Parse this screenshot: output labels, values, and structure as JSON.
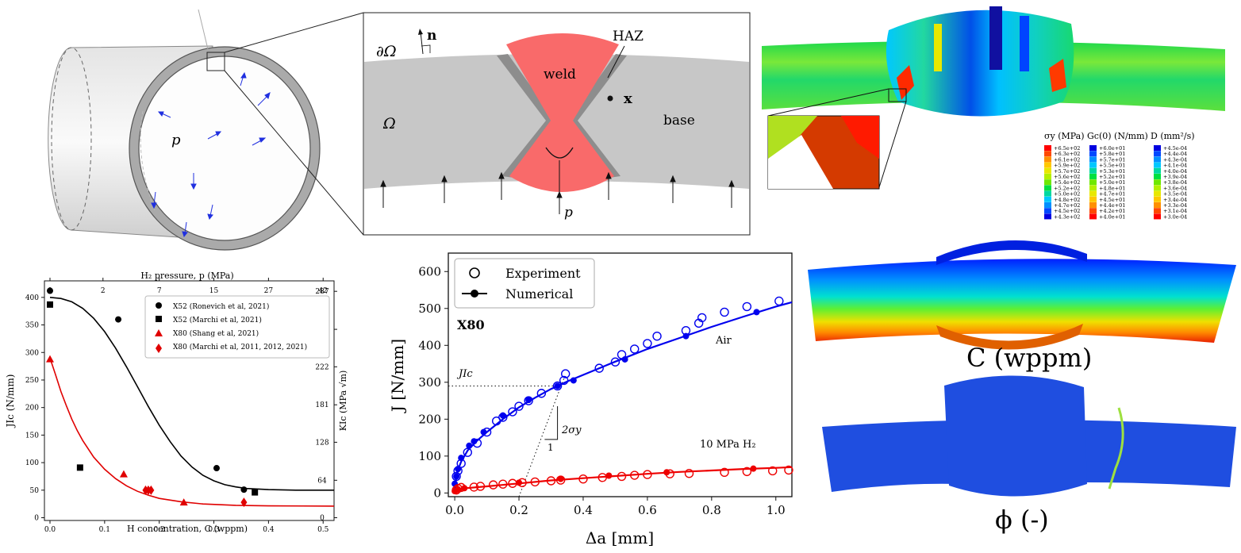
{
  "pipe": {
    "pressure_symbol": "p"
  },
  "weld_schematic": {
    "boundary": "∂Ω",
    "normal": "n",
    "domain": "Ω",
    "weld": "weld",
    "haz": "HAZ",
    "point": "x",
    "base": "base",
    "pressure": "p"
  },
  "fe_map": {
    "legends": [
      {
        "title": "σy (MPa)",
        "values": [
          "+6.5e+02",
          "+6.3e+02",
          "+6.1e+02",
          "+5.9e+02",
          "+5.7e+02",
          "+5.6e+02",
          "+5.4e+02",
          "+5.2e+02",
          "+5.0e+02",
          "+4.8e+02",
          "+4.7e+02",
          "+4.5e+02",
          "+4.3e+02"
        ],
        "colors": [
          "#ff0000",
          "#ff4800",
          "#ff9000",
          "#ffc800",
          "#e8e800",
          "#b4f000",
          "#6ee800",
          "#00e040",
          "#00d8a0",
          "#00c8ff",
          "#0090ff",
          "#0048ff",
          "#0000e0"
        ]
      },
      {
        "title": "Gc(0) (N/mm)",
        "values": [
          "+6.0e+01",
          "+5.8e+01",
          "+5.7e+01",
          "+5.5e+01",
          "+5.3e+01",
          "+5.2e+01",
          "+5.0e+01",
          "+4.8e+01",
          "+4.7e+01",
          "+4.5e+01",
          "+4.4e+01",
          "+4.2e+01",
          "+4.0e+01"
        ],
        "colors": [
          "#0000e0",
          "#0048ff",
          "#0090ff",
          "#00c8ff",
          "#00d8a0",
          "#00e040",
          "#6ee800",
          "#b4f000",
          "#e8e800",
          "#ffc800",
          "#ff9000",
          "#ff4800",
          "#ff0000"
        ]
      },
      {
        "title": "D (mm²/s)",
        "values": [
          "+4.5e-04",
          "+4.4e-04",
          "+4.3e-04",
          "+4.1e-04",
          "+4.0e-04",
          "+3.9e-04",
          "+3.8e-04",
          "+3.6e-04",
          "+3.5e-04",
          "+3.4e-04",
          "+3.3e-04",
          "+3.1e-04",
          "+3.0e-04"
        ],
        "colors": [
          "#0000e0",
          "#0048ff",
          "#0090ff",
          "#00c8ff",
          "#00d8a0",
          "#00e040",
          "#6ee800",
          "#b4f000",
          "#e8e800",
          "#ffc800",
          "#ff9000",
          "#ff4800",
          "#ff0000"
        ]
      }
    ]
  },
  "contours": {
    "hydrogen_label": "C (wppm)",
    "phase_label": "ϕ (-)"
  },
  "chart_data": [
    {
      "type": "scatter",
      "xlabel": "H concentration, C (wppm)",
      "ylabel": "JIc (N/mm)",
      "top_xlabel": "H₂ pressure, p (MPa)",
      "right_ylabel": "KIc (MPa √m)",
      "xlim": [
        0,
        0.52
      ],
      "ylim": [
        -5,
        430
      ],
      "xticks": [
        0.0,
        0.1,
        0.2,
        0.3,
        0.4,
        0.5
      ],
      "yticks": [
        0,
        50,
        100,
        150,
        200,
        250,
        300,
        350,
        400
      ],
      "top_ticks": [
        {
          "C": 0.0,
          "label": "0"
        },
        {
          "C": 0.097,
          "label": "2"
        },
        {
          "C": 0.2,
          "label": "7"
        },
        {
          "C": 0.3,
          "label": "15"
        },
        {
          "C": 0.4,
          "label": "27"
        },
        {
          "C": 0.5,
          "label": "42"
        }
      ],
      "right_ticks": [
        {
          "J": 0,
          "label": "0"
        },
        {
          "J": 68,
          "label": "64"
        },
        {
          "J": 137,
          "label": "128"
        },
        {
          "J": 205,
          "label": "181"
        },
        {
          "J": 274,
          "label": "222"
        },
        {
          "J": 342,
          "label": "256"
        },
        {
          "J": 411,
          "label": "287"
        }
      ],
      "series": [
        {
          "name": "X52 (Ronevich et al, 2021)",
          "marker": "circle",
          "color": "#000000",
          "points": [
            [
              0.0,
              412
            ],
            [
              0.125,
              360
            ],
            [
              0.305,
              90
            ],
            [
              0.355,
              51
            ]
          ]
        },
        {
          "name": "X52 (Marchi et al, 2021)",
          "marker": "square",
          "color": "#000000",
          "points": [
            [
              0.0,
              387
            ],
            [
              0.055,
              91
            ],
            [
              0.375,
              46
            ]
          ]
        },
        {
          "name": "X80 (Shang et al, 2021)",
          "marker": "triangle",
          "color": "#e00000",
          "points": [
            [
              0.0,
              288
            ],
            [
              0.135,
              79
            ],
            [
              0.245,
              28
            ]
          ]
        },
        {
          "name": "X80 (Marchi et al, 2011, 2012, 2021)",
          "marker": "diamond",
          "color": "#e00000",
          "points": [
            [
              0.175,
              50
            ],
            [
              0.18,
              50
            ],
            [
              0.185,
              50
            ],
            [
              0.355,
              28
            ]
          ]
        }
      ],
      "fits": [
        {
          "color": "#000000",
          "points": [
            [
              0,
              400
            ],
            [
              0.02,
              398
            ],
            [
              0.04,
              392
            ],
            [
              0.06,
              380
            ],
            [
              0.08,
              362
            ],
            [
              0.1,
              338
            ],
            [
              0.12,
              308
            ],
            [
              0.14,
              274
            ],
            [
              0.16,
              238
            ],
            [
              0.18,
              202
            ],
            [
              0.2,
              168
            ],
            [
              0.22,
              138
            ],
            [
              0.24,
              112
            ],
            [
              0.26,
              92
            ],
            [
              0.28,
              77
            ],
            [
              0.3,
              67
            ],
            [
              0.32,
              60
            ],
            [
              0.34,
              56
            ],
            [
              0.36,
              53
            ],
            [
              0.4,
              51
            ],
            [
              0.45,
              50
            ],
            [
              0.52,
              50
            ]
          ]
        },
        {
          "color": "#e00000",
          "points": [
            [
              0,
              290
            ],
            [
              0.01,
              260
            ],
            [
              0.02,
              229
            ],
            [
              0.03,
              203
            ],
            [
              0.04,
              179
            ],
            [
              0.05,
              158
            ],
            [
              0.06,
              140
            ],
            [
              0.08,
              110
            ],
            [
              0.1,
              88
            ],
            [
              0.12,
              71
            ],
            [
              0.14,
              58
            ],
            [
              0.16,
              48
            ],
            [
              0.18,
              41
            ],
            [
              0.2,
              35
            ],
            [
              0.24,
              29
            ],
            [
              0.28,
              25
            ],
            [
              0.34,
              22.5
            ],
            [
              0.4,
              21.5
            ],
            [
              0.52,
              21
            ]
          ]
        }
      ]
    },
    {
      "type": "scatter",
      "xlabel": "Δa [mm]",
      "ylabel": "J [N/mm]",
      "xlim": [
        -0.02,
        1.05
      ],
      "ylim": [
        -10,
        650
      ],
      "xticks": [
        0.0,
        0.2,
        0.4,
        0.6,
        0.8,
        1.0
      ],
      "yticks": [
        0,
        100,
        200,
        300,
        400,
        500,
        600
      ],
      "material_label": "X80",
      "annotations": {
        "air": "Air",
        "h2": "10 MPa H₂",
        "jic": "JIc",
        "slope_label": "2σy",
        "slope_run": "1"
      },
      "jic_value": 290,
      "legend": [
        "Experiment",
        "Numerical"
      ],
      "series": [
        {
          "name": "Experiment",
          "condition": "Air",
          "color": "#0000ee",
          "marker": "open-circle",
          "points": [
            [
              0.005,
              45
            ],
            [
              0.01,
              60
            ],
            [
              0.02,
              80
            ],
            [
              0.04,
              110
            ],
            [
              0.07,
              135
            ],
            [
              0.1,
              165
            ],
            [
              0.13,
              195
            ],
            [
              0.15,
              205
            ],
            [
              0.18,
              220
            ],
            [
              0.2,
              235
            ],
            [
              0.23,
              250
            ],
            [
              0.27,
              270
            ],
            [
              0.32,
              290
            ],
            [
              0.34,
              305
            ],
            [
              0.345,
              323
            ],
            [
              0.45,
              338
            ],
            [
              0.5,
              355
            ],
            [
              0.52,
              375
            ],
            [
              0.56,
              390
            ],
            [
              0.6,
              405
            ],
            [
              0.63,
              425
            ],
            [
              0.72,
              440
            ],
            [
              0.76,
              460
            ],
            [
              0.77,
              475
            ],
            [
              0.84,
              490
            ],
            [
              0.91,
              505
            ],
            [
              1.01,
              520
            ]
          ]
        },
        {
          "name": "Numerical",
          "condition": "Air",
          "color": "#0000ee",
          "marker": "filled-circle",
          "points": [
            [
              0.0,
              25
            ],
            [
              0.005,
              45
            ],
            [
              0.01,
              65
            ],
            [
              0.02,
              95
            ],
            [
              0.045,
              128
            ],
            [
              0.06,
              140
            ],
            [
              0.09,
              165
            ],
            [
              0.15,
              210
            ],
            [
              0.23,
              252
            ],
            [
              0.32,
              290
            ],
            [
              0.37,
              305
            ],
            [
              0.53,
              362
            ],
            [
              0.72,
              425
            ],
            [
              0.94,
              490
            ]
          ]
        },
        {
          "name": "Experiment",
          "condition": "10 MPa H2",
          "color": "#ee0000",
          "marker": "open-circle",
          "points": [
            [
              0.005,
              8
            ],
            [
              0.01,
              12
            ],
            [
              0.02,
              15
            ],
            [
              0.06,
              16
            ],
            [
              0.08,
              18
            ],
            [
              0.12,
              22
            ],
            [
              0.15,
              24
            ],
            [
              0.18,
              26
            ],
            [
              0.21,
              28
            ],
            [
              0.25,
              30
            ],
            [
              0.3,
              33
            ],
            [
              0.33,
              35
            ],
            [
              0.4,
              38
            ],
            [
              0.46,
              42
            ],
            [
              0.52,
              45
            ],
            [
              0.56,
              48
            ],
            [
              0.6,
              50
            ],
            [
              0.67,
              52
            ],
            [
              0.73,
              53
            ],
            [
              0.84,
              56
            ],
            [
              0.91,
              58
            ],
            [
              0.99,
              60
            ],
            [
              1.04,
              62
            ]
          ]
        },
        {
          "name": "Numerical",
          "condition": "10 MPa H2",
          "color": "#ee0000",
          "marker": "filled-circle",
          "points": [
            [
              0.0,
              5
            ],
            [
              0.01,
              10
            ],
            [
              0.03,
              13
            ],
            [
              0.2,
              28
            ],
            [
              0.33,
              38
            ],
            [
              0.48,
              47
            ],
            [
              0.66,
              56
            ],
            [
              0.93,
              66
            ]
          ]
        }
      ],
      "fits": [
        {
          "color": "#0000ee",
          "points": [
            [
              0,
              10
            ],
            [
              0.005,
              45
            ],
            [
              0.01,
              62
            ],
            [
              0.02,
              85
            ],
            [
              0.04,
              115
            ],
            [
              0.07,
              142
            ],
            [
              0.1,
              165
            ],
            [
              0.15,
              200
            ],
            [
              0.2,
              232
            ],
            [
              0.25,
              258
            ],
            [
              0.3,
              282
            ],
            [
              0.35,
              302
            ],
            [
              0.4,
              320
            ],
            [
              0.5,
              356
            ],
            [
              0.6,
              390
            ],
            [
              0.7,
              420
            ],
            [
              0.8,
              450
            ],
            [
              0.9,
              478
            ],
            [
              1.0,
              505
            ],
            [
              1.05,
              517
            ]
          ]
        },
        {
          "color": "#ee0000",
          "points": [
            [
              0,
              5
            ],
            [
              0.02,
              12
            ],
            [
              0.1,
              18
            ],
            [
              0.2,
              26
            ],
            [
              0.3,
              34
            ],
            [
              0.4,
              40
            ],
            [
              0.5,
              46
            ],
            [
              0.6,
              52
            ],
            [
              0.7,
              57
            ],
            [
              0.8,
              61
            ],
            [
              0.9,
              65
            ],
            [
              1.0,
              68
            ],
            [
              1.05,
              70
            ]
          ]
        }
      ]
    }
  ]
}
